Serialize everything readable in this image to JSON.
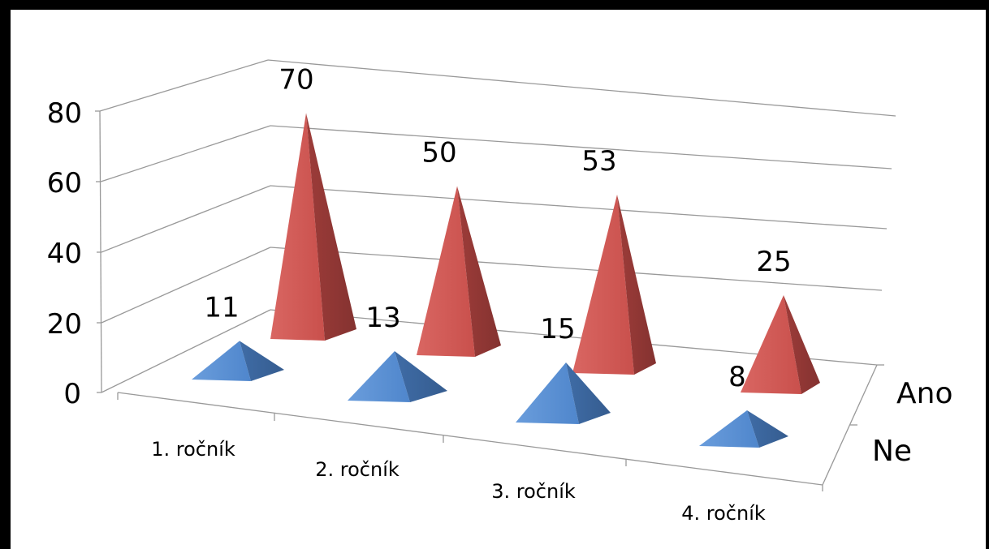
{
  "chart_data": {
    "type": "bar",
    "shape": "3d-pyramid",
    "categories": [
      "1. ročník",
      "2. ročník",
      "3. ročník",
      "4. ročník"
    ],
    "series": [
      {
        "name": "Ne",
        "values": [
          11,
          13,
          15,
          8
        ],
        "color": "#4f81bd"
      },
      {
        "name": "Ano",
        "values": [
          70,
          50,
          53,
          25
        ],
        "color": "#c0504d"
      }
    ],
    "ylim": [
      0,
      80
    ],
    "yticks": [
      "0",
      "20",
      "40",
      "60",
      "80"
    ],
    "grid": true,
    "data_labels": true
  }
}
